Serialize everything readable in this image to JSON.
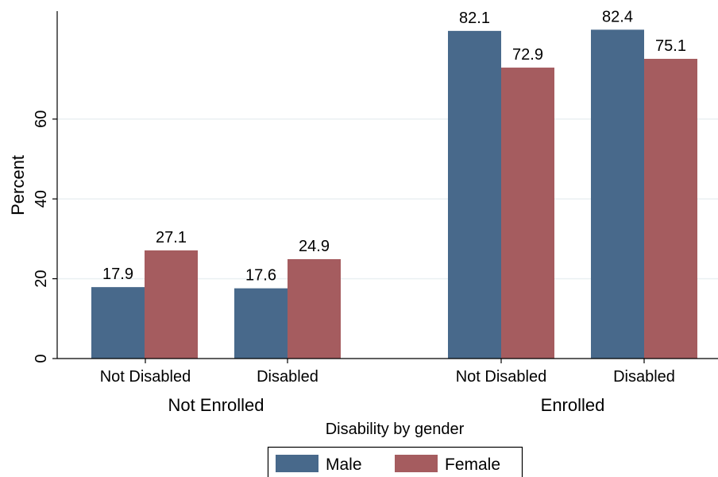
{
  "chart_data": {
    "type": "bar",
    "title": "",
    "xlabel": "Disability by gender",
    "ylabel": "Percent",
    "ylim": [
      0,
      85
    ],
    "yticks": [
      0,
      20,
      40,
      60
    ],
    "grid": true,
    "legend_position": "bottom",
    "groups": [
      {
        "label": "Not Enrolled",
        "categories": [
          "Not Disabled",
          "Disabled"
        ]
      },
      {
        "label": "Enrolled",
        "categories": [
          "Not Disabled",
          "Disabled"
        ]
      }
    ],
    "series": [
      {
        "name": "Male",
        "color": "#48698b",
        "values": [
          17.9,
          17.6,
          82.1,
          82.4
        ]
      },
      {
        "name": "Female",
        "color": "#a55c5f",
        "values": [
          27.1,
          24.9,
          72.9,
          75.1
        ]
      }
    ]
  }
}
